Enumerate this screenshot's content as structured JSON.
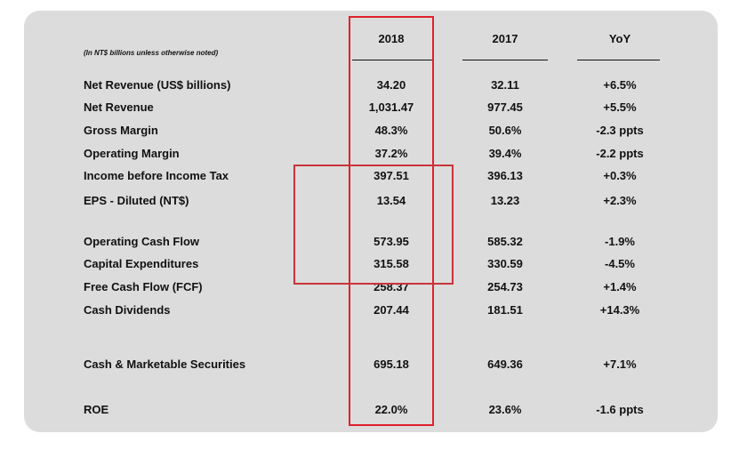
{
  "note": "(In NT$ billions unless otherwise noted)",
  "columns": {
    "c2018": "2018",
    "c2017": "2017",
    "yoy": "YoY"
  },
  "rows": [
    {
      "label": "Net Revenue (US$ billions)",
      "v2018": "34.20",
      "v2017": "32.11",
      "yoy": "+6.5%"
    },
    {
      "label": "Net Revenue",
      "v2018": "1,031.47",
      "v2017": "977.45",
      "yoy": "+5.5%"
    },
    {
      "label": "Gross Margin",
      "v2018": "48.3%",
      "v2017": "50.6%",
      "yoy": "-2.3 ppts"
    },
    {
      "label": "Operating Margin",
      "v2018": "37.2%",
      "v2017": "39.4%",
      "yoy": "-2.2 ppts"
    },
    {
      "label": "Income before Income Tax",
      "v2018": "397.51",
      "v2017": "396.13",
      "yoy": "+0.3%"
    },
    {
      "label": "EPS - Diluted (NT$)",
      "v2018": "13.54",
      "v2017": "13.23",
      "yoy": "+2.3%"
    },
    {
      "label": "Operating Cash Flow",
      "v2018": "573.95",
      "v2017": "585.32",
      "yoy": "-1.9%"
    },
    {
      "label": "Capital Expenditures",
      "v2018": "315.58",
      "v2017": "330.59",
      "yoy": "-4.5%"
    },
    {
      "label": "Free Cash Flow (FCF)",
      "v2018": "258.37",
      "v2017": "254.73",
      "yoy": "+1.4%"
    },
    {
      "label": "Cash Dividends",
      "v2018": "207.44",
      "v2017": "181.51",
      "yoy": "+14.3%"
    },
    {
      "label": "Cash & Marketable Securities",
      "v2018": "695.18",
      "v2017": "649.36",
      "yoy": "+7.1%"
    },
    {
      "label": "ROE",
      "v2018": "22.0%",
      "v2017": "23.6%",
      "yoy": "-1.6 ppts"
    }
  ],
  "colors": {
    "panel": "#dcdcdc",
    "highlight": "#e0202a"
  }
}
